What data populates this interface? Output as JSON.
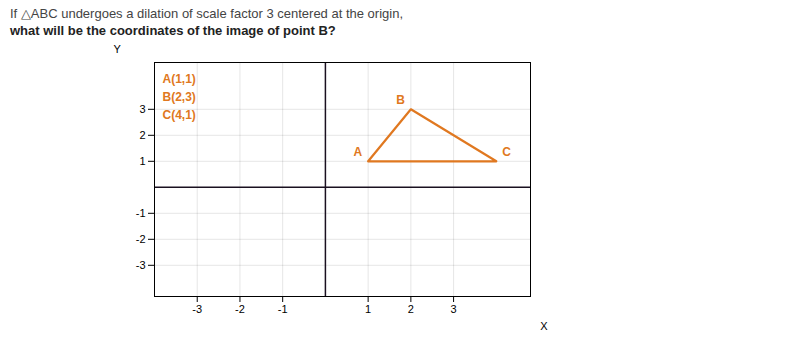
{
  "chart_data": {
    "type": "line",
    "title": "If △ABC undergoes a dilation of scale factor 3 centered at the origin,",
    "subtitle": "what will be the coordinates of the image of point B?",
    "xlabel": "X",
    "ylabel": "Y",
    "x": [
      1,
      2,
      4,
      1
    ],
    "values": [
      1,
      3,
      1,
      1
    ],
    "point_labels": [
      "A",
      "B",
      "C",
      null
    ],
    "annotations": [
      "A(1,1)",
      "B(2,3)",
      "C(4,1)"
    ],
    "color": "#E07820",
    "xlim": [
      -4.0,
      4.8
    ],
    "ylim": [
      -4.2,
      4.8
    ],
    "xticks": [
      -3,
      -2,
      -1,
      1,
      2,
      3
    ],
    "yticks": [
      -3,
      -2,
      -1,
      1,
      2,
      3
    ],
    "grid": true
  }
}
